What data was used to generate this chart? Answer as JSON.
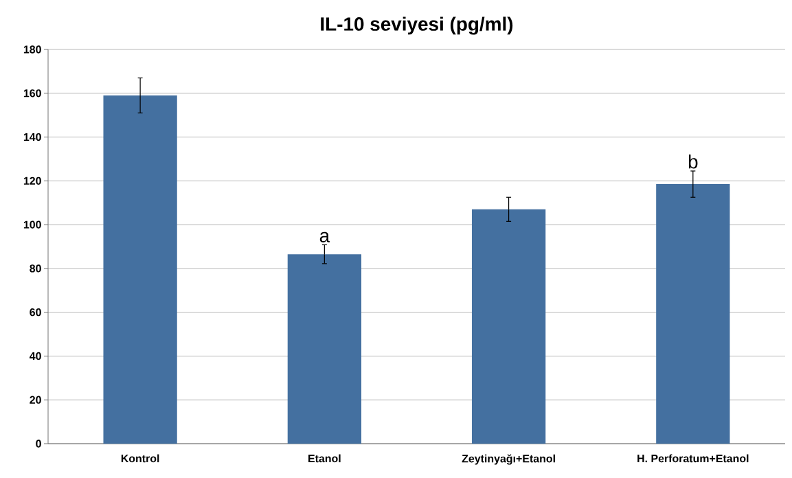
{
  "chart_data": {
    "type": "bar",
    "title": "IL-10 seviyesi (pg/ml)",
    "categories": [
      "Kontrol",
      "Etanol",
      "Zeytinyağı+Etanol",
      "H. Perforatum+Etanol"
    ],
    "values": [
      159,
      86.5,
      107,
      118.5
    ],
    "errors": [
      8,
      4.3,
      5.5,
      6
    ],
    "color": "#4470a0",
    "ylim": [
      0,
      180
    ],
    "yticks": [
      0,
      20,
      40,
      60,
      80,
      100,
      120,
      140,
      160,
      180
    ],
    "grid": "y",
    "value_labels": [
      null,
      "a",
      null,
      "b"
    ]
  }
}
